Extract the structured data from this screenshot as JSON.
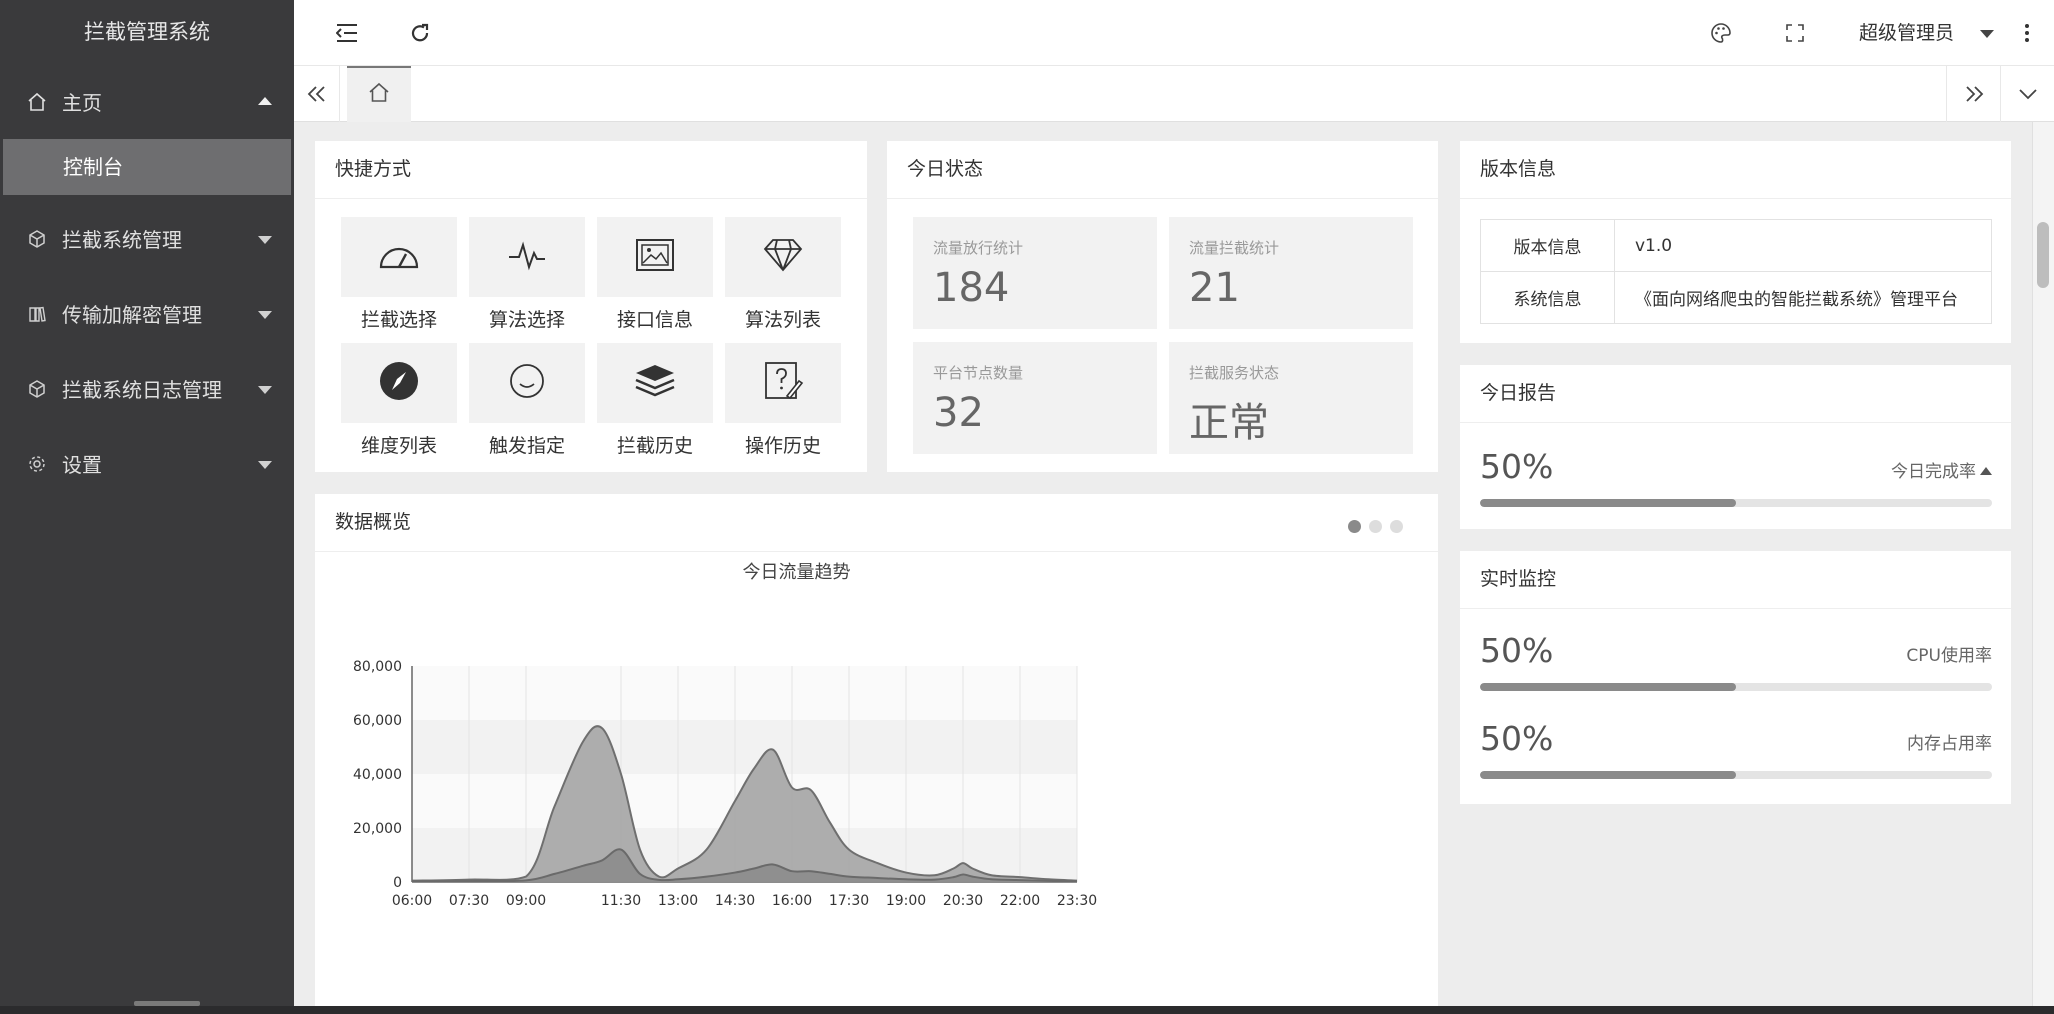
{
  "app": {
    "title": "拦截管理系统"
  },
  "sidebar": {
    "items": [
      {
        "label": "主页",
        "icon": "home-icon",
        "expanded": true,
        "children": [
          {
            "label": "控制台",
            "active": true
          }
        ]
      },
      {
        "label": "拦截系统管理",
        "icon": "cube-icon"
      },
      {
        "label": "传输加解密管理",
        "icon": "book-icon"
      },
      {
        "label": "拦截系统日志管理",
        "icon": "cube-icon"
      },
      {
        "label": "设置",
        "icon": "gear-icon"
      }
    ]
  },
  "header": {
    "icons": [
      "menu-fold-icon",
      "refresh-icon",
      "palette-icon",
      "fullscreen-icon",
      "more-vertical-icon"
    ],
    "user": "超级管理员"
  },
  "tabs": {
    "items": [
      {
        "icon": "home-icon",
        "active": true
      }
    ]
  },
  "quick_links": {
    "title": "快捷方式",
    "items": [
      {
        "label": "拦截选择",
        "icon": "gauge-icon"
      },
      {
        "label": "算法选择",
        "icon": "pulse-icon"
      },
      {
        "label": "接口信息",
        "icon": "picture-icon"
      },
      {
        "label": "算法列表",
        "icon": "diamond-icon"
      },
      {
        "label": "维度列表",
        "icon": "compass-icon"
      },
      {
        "label": "触发指定",
        "icon": "smile-icon"
      },
      {
        "label": "拦截历史",
        "icon": "layers-icon"
      },
      {
        "label": "操作历史",
        "icon": "help-edit-icon"
      }
    ]
  },
  "today_status": {
    "title": "今日状态",
    "items": [
      {
        "label": "流量放行统计",
        "value": "184"
      },
      {
        "label": "流量拦截统计",
        "value": "21"
      },
      {
        "label": "平台节点数量",
        "value": "32"
      },
      {
        "label": "拦截服务状态",
        "value": "正常"
      }
    ]
  },
  "version": {
    "title": "版本信息",
    "rows": [
      {
        "key": "版本信息",
        "value": "v1.0"
      },
      {
        "key": "系统信息",
        "value": "《面向网络爬虫的智能拦截系统》管理平台"
      }
    ]
  },
  "report": {
    "title": "今日报告",
    "percent": "50%",
    "label": "今日完成率",
    "fraction": 0.5
  },
  "monitor": {
    "title": "实时监控",
    "items": [
      {
        "percent": "50%",
        "label": "CPU使用率",
        "fraction": 0.5
      },
      {
        "percent": "50%",
        "label": "内存占用率",
        "fraction": 0.5
      }
    ]
  },
  "overview": {
    "title": "数据概览",
    "carousel_pages": 3,
    "carousel_active": 0
  },
  "chart_data": {
    "type": "area",
    "title": "今日流量趋势",
    "xlabel": "",
    "ylabel": "",
    "x_ticks": [
      "06:00",
      "07:30",
      "09:00",
      "11:30",
      "13:00",
      "14:30",
      "16:00",
      "17:30",
      "19:00",
      "20:30",
      "22:00",
      "23:30"
    ],
    "y_ticks": [
      "0",
      "20,000",
      "40,000",
      "60,000",
      "80,000"
    ],
    "ylim": [
      0,
      80000
    ],
    "grid": true,
    "x": [
      "06:00",
      "07:30",
      "09:00",
      "09:45",
      "10:30",
      "11:00",
      "11:30",
      "12:00",
      "12:30",
      "13:00",
      "13:45",
      "14:30",
      "15:00",
      "15:30",
      "16:00",
      "16:30",
      "17:00",
      "17:30",
      "18:15",
      "19:00",
      "19:45",
      "20:15",
      "20:30",
      "20:45",
      "21:15",
      "22:00",
      "22:45",
      "23:30"
    ],
    "series": [
      {
        "values": [
          500,
          900,
          2000,
          28000,
          52000,
          57000,
          40000,
          12000,
          2000,
          5000,
          12000,
          30000,
          42000,
          49000,
          35000,
          34000,
          22000,
          12000,
          7000,
          3500,
          2500,
          5000,
          7000,
          5000,
          2500,
          1800,
          1000,
          500
        ]
      },
      {
        "values": [
          200,
          300,
          600,
          3000,
          6000,
          8000,
          12000,
          3000,
          800,
          1000,
          2000,
          3500,
          5000,
          6500,
          4000,
          4000,
          3000,
          2000,
          1500,
          1000,
          900,
          1800,
          2800,
          2000,
          1000,
          700,
          400,
          200
        ]
      }
    ]
  }
}
